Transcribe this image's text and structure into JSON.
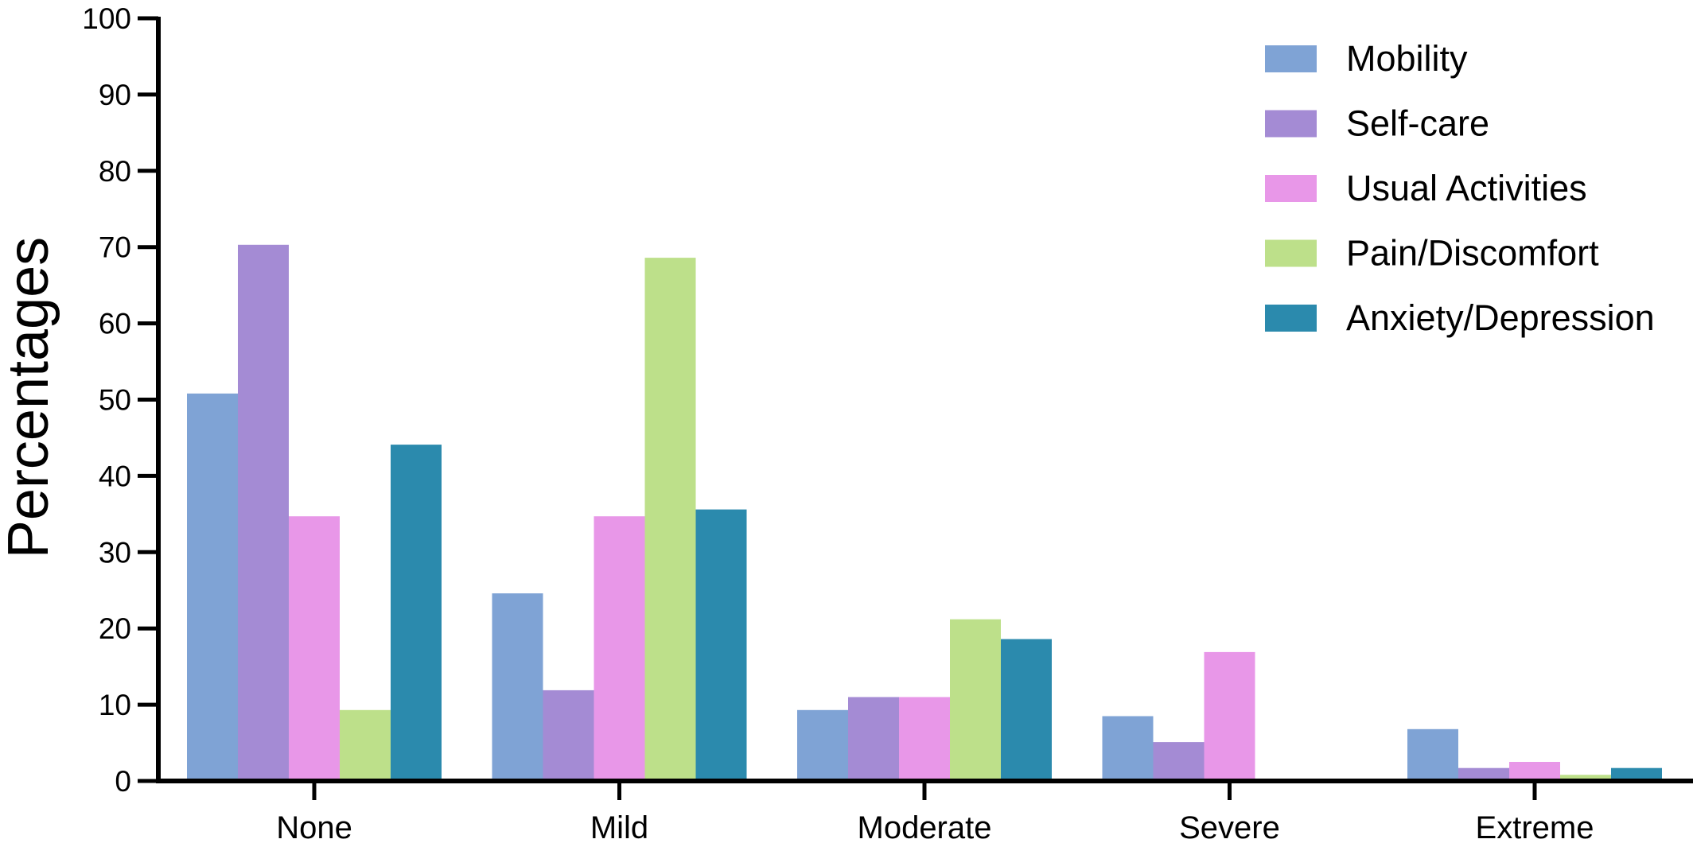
{
  "chart_data": {
    "type": "bar",
    "title": "",
    "xlabel": "",
    "ylabel": "Percentages",
    "ylim": [
      0,
      100
    ],
    "yticks": [
      "0",
      "10",
      "20",
      "30",
      "40",
      "50",
      "60",
      "70",
      "80",
      "90",
      "100"
    ],
    "categories": [
      "None",
      "Mild",
      "Moderate",
      "Severe",
      "Extreme"
    ],
    "legend_position": "top-right",
    "grid": false,
    "series": [
      {
        "name": "Mobility",
        "color": "#7fa3d5",
        "values": [
          50.8,
          24.6,
          9.3,
          8.5,
          6.8
        ]
      },
      {
        "name": "Self-care",
        "color": "#a48bd4",
        "values": [
          70.3,
          11.9,
          11.0,
          5.1,
          1.7
        ]
      },
      {
        "name": "Usual Activities",
        "color": "#e897e8",
        "values": [
          34.7,
          34.7,
          11.0,
          16.9,
          2.5
        ]
      },
      {
        "name": "Pain/Discomfort",
        "color": "#bde08a",
        "values": [
          9.3,
          68.6,
          21.2,
          0,
          0.8
        ]
      },
      {
        "name": "Anxiety/Depression",
        "color": "#2b8aad",
        "values": [
          44.1,
          35.6,
          18.6,
          0,
          1.7
        ]
      }
    ]
  }
}
